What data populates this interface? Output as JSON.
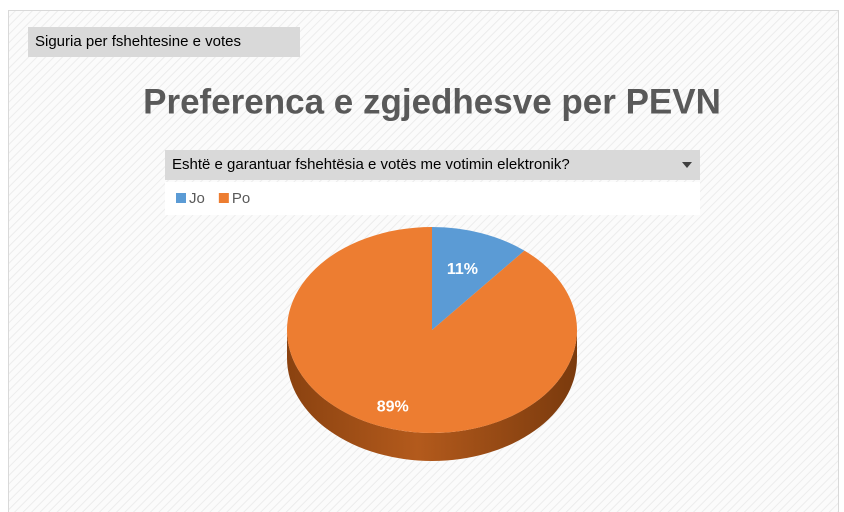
{
  "chart_data": {
    "type": "pie",
    "field_button": "Siguria per fshehtesine e votes",
    "title": "Preferenca e zgjedhesve per PEVN",
    "filter": "Eshtë e garantuar fshehtësia e votës me votimin elektronik?",
    "categories": [
      "Jo",
      "Po"
    ],
    "values": [
      11,
      89
    ],
    "value_labels": [
      "11%",
      "89%"
    ],
    "colors": [
      "#5b9bd5",
      "#ed7d31"
    ],
    "legend": "top-left"
  }
}
